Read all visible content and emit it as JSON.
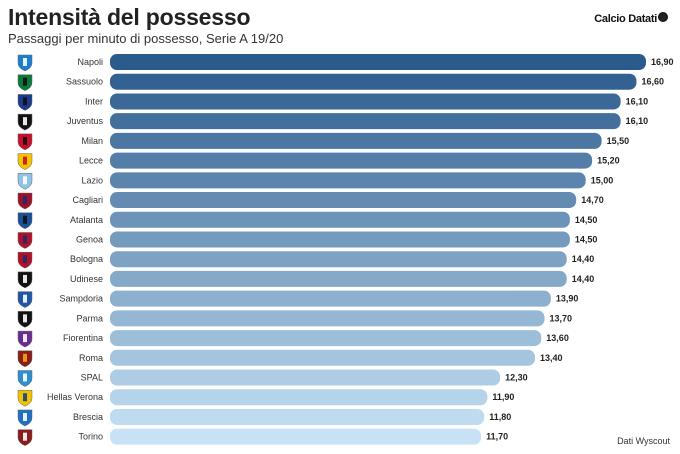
{
  "header": {
    "title": "Intensità del possesso",
    "subtitle": "Passaggi per minuto di possesso, Serie A 19/20",
    "brand": "Calcio Datati"
  },
  "footer": {
    "source": "Dati Wyscout"
  },
  "chart_data": {
    "type": "bar",
    "orientation": "horizontal",
    "title": "Intensità del possesso",
    "subtitle": "Passaggi per minuto di possesso, Serie A 19/20",
    "categories": [
      "Napoli",
      "Sassuolo",
      "Inter",
      "Juventus",
      "Milan",
      "Lecce",
      "Lazio",
      "Cagliari",
      "Atalanta",
      "Genoa",
      "Bologna",
      "Udinese",
      "Sampdoria",
      "Parma",
      "Fiorentina",
      "Roma",
      "SPAL",
      "Hellas Verona",
      "Brescia",
      "Torino"
    ],
    "values": [
      16.9,
      16.6,
      16.1,
      16.1,
      15.5,
      15.2,
      15.0,
      14.7,
      14.5,
      14.5,
      14.4,
      14.4,
      13.9,
      13.7,
      13.6,
      13.4,
      12.3,
      11.9,
      11.8,
      11.7
    ],
    "value_labels": [
      "16,90",
      "16,60",
      "16,10",
      "16,10",
      "15,50",
      "15,20",
      "15,00",
      "14,70",
      "14,50",
      "14,50",
      "14,40",
      "14,40",
      "13,90",
      "13,70",
      "13,60",
      "13,40",
      "12,30",
      "11,90",
      "11,80",
      "11,70"
    ],
    "xlim": [
      0,
      16.9
    ],
    "grid": false,
    "legend": "none",
    "color_dark": "#2b5a8c",
    "color_light": "#c6e2f4",
    "club_colors": [
      "#1b7fd1",
      "#0a7a3c",
      "#1c3a8f",
      "#111111",
      "#c8102e",
      "#f5c400",
      "#8fc3e8",
      "#a0102a",
      "#1a4f9c",
      "#b0102a",
      "#b0102a",
      "#111111",
      "#1f57a5",
      "#111111",
      "#6a2c91",
      "#8a1c1c",
      "#2e8fd0",
      "#f0c200",
      "#1f6fc2",
      "#8a1c1c"
    ],
    "club_accent": [
      "#ffffff",
      "#111111",
      "#111111",
      "#ffffff",
      "#111111",
      "#c8102e",
      "#ffffff",
      "#1a2f6b",
      "#111111",
      "#1a2f6b",
      "#1a2f6b",
      "#ffffff",
      "#ffffff",
      "#ffffff",
      "#ffffff",
      "#f6a800",
      "#ffffff",
      "#1a3f8c",
      "#ffffff",
      "#ffffff"
    ]
  }
}
